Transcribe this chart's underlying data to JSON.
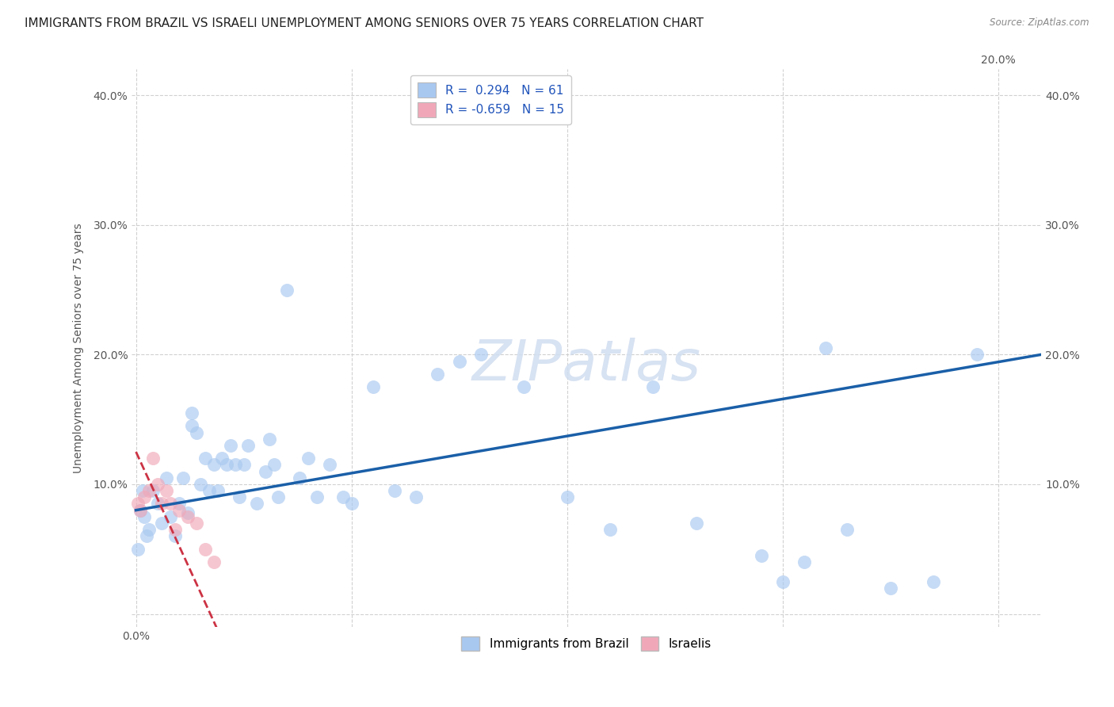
{
  "title": "IMMIGRANTS FROM BRAZIL VS ISRAELI UNEMPLOYMENT AMONG SENIORS OVER 75 YEARS CORRELATION CHART",
  "source": "Source: ZipAtlas.com",
  "ylabel": "Unemployment Among Seniors over 75 years",
  "legend_bottom": [
    "Immigrants from Brazil",
    "Israelis"
  ],
  "R_brazil": 0.294,
  "N_brazil": 61,
  "R_israeli": -0.659,
  "N_israeli": 15,
  "xlim": [
    -0.1,
    21.0
  ],
  "ylim": [
    -1.0,
    42.0
  ],
  "xticks": [
    0.0,
    5.0,
    10.0,
    15.0,
    20.0
  ],
  "yticks": [
    0.0,
    10.0,
    20.0,
    30.0,
    40.0
  ],
  "ytick_labels_left": [
    "",
    "10.0%",
    "20.0%",
    "30.0%",
    "40.0%"
  ],
  "ytick_labels_right": [
    "",
    "10.0%",
    "20.0%",
    "30.0%",
    "40.0%"
  ],
  "xtick_labels": [
    "0.0%",
    "",
    "",
    "",
    ""
  ],
  "xtick_labels_right": [
    "",
    "",
    "",
    "",
    "20.0%"
  ],
  "background_color": "#ffffff",
  "watermark_text": "ZIPatlas",
  "brazil_color": "#a8c8f0",
  "israeli_color": "#f0a8b8",
  "brazil_line_color": "#1a5fa8",
  "israeli_line_color": "#cc3344",
  "brazil_scatter": [
    [
      0.1,
      8.0
    ],
    [
      0.2,
      7.5
    ],
    [
      0.3,
      6.5
    ],
    [
      0.4,
      9.5
    ],
    [
      0.5,
      8.5
    ],
    [
      0.6,
      7.0
    ],
    [
      0.7,
      10.5
    ],
    [
      0.8,
      7.5
    ],
    [
      0.9,
      6.0
    ],
    [
      1.0,
      8.5
    ],
    [
      1.1,
      10.5
    ],
    [
      1.2,
      7.8
    ],
    [
      1.3,
      14.5
    ],
    [
      1.3,
      15.5
    ],
    [
      1.4,
      14.0
    ],
    [
      1.5,
      10.0
    ],
    [
      1.6,
      12.0
    ],
    [
      1.7,
      9.5
    ],
    [
      1.8,
      11.5
    ],
    [
      1.9,
      9.5
    ],
    [
      2.0,
      12.0
    ],
    [
      2.1,
      11.5
    ],
    [
      2.2,
      13.0
    ],
    [
      2.3,
      11.5
    ],
    [
      2.4,
      9.0
    ],
    [
      2.5,
      11.5
    ],
    [
      2.6,
      13.0
    ],
    [
      2.8,
      8.5
    ],
    [
      3.0,
      11.0
    ],
    [
      3.1,
      13.5
    ],
    [
      3.2,
      11.5
    ],
    [
      3.3,
      9.0
    ],
    [
      3.5,
      25.0
    ],
    [
      3.8,
      10.5
    ],
    [
      4.0,
      12.0
    ],
    [
      4.2,
      9.0
    ],
    [
      4.5,
      11.5
    ],
    [
      4.8,
      9.0
    ],
    [
      5.0,
      8.5
    ],
    [
      5.5,
      17.5
    ],
    [
      6.0,
      9.5
    ],
    [
      6.5,
      9.0
    ],
    [
      7.0,
      18.5
    ],
    [
      7.5,
      19.5
    ],
    [
      8.0,
      20.0
    ],
    [
      9.0,
      17.5
    ],
    [
      10.0,
      9.0
    ],
    [
      11.0,
      6.5
    ],
    [
      13.0,
      7.0
    ],
    [
      15.0,
      2.5
    ],
    [
      16.0,
      20.5
    ],
    [
      17.5,
      2.0
    ],
    [
      15.5,
      4.0
    ],
    [
      12.0,
      17.5
    ],
    [
      14.5,
      4.5
    ],
    [
      16.5,
      6.5
    ],
    [
      18.5,
      2.5
    ],
    [
      19.5,
      20.0
    ],
    [
      0.05,
      5.0
    ],
    [
      0.15,
      9.5
    ],
    [
      0.25,
      6.0
    ]
  ],
  "israeli_scatter": [
    [
      0.05,
      8.5
    ],
    [
      0.1,
      8.0
    ],
    [
      0.2,
      9.0
    ],
    [
      0.3,
      9.5
    ],
    [
      0.4,
      12.0
    ],
    [
      0.5,
      10.0
    ],
    [
      0.6,
      8.5
    ],
    [
      0.7,
      9.5
    ],
    [
      0.8,
      8.5
    ],
    [
      0.9,
      6.5
    ],
    [
      1.0,
      8.0
    ],
    [
      1.2,
      7.5
    ],
    [
      1.4,
      7.0
    ],
    [
      1.6,
      5.0
    ],
    [
      1.8,
      4.0
    ]
  ],
  "brazil_trendline": [
    0.0,
    21.0,
    8.0,
    20.0
  ],
  "israeli_trendline": [
    0.0,
    2.0,
    12.5,
    -2.0
  ],
  "title_fontsize": 11,
  "axis_fontsize": 10,
  "tick_fontsize": 10,
  "watermark_fontsize": 52
}
